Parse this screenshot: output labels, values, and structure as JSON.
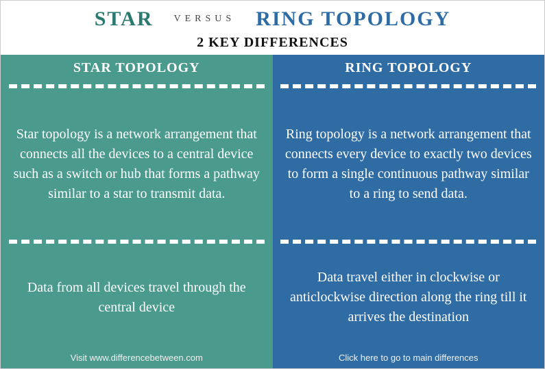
{
  "header": {
    "left": "STAR",
    "versus": "VERSUS",
    "right": "RING TOPOLOGY",
    "left_color": "#2b7a6f",
    "right_color": "#2f6ca3"
  },
  "subtitle": "2 KEY DIFFERENCES",
  "columns": {
    "left": {
      "title": "STAR TOPOLOGY",
      "bg_color": "#4a9a8e",
      "definition": "Star topology is a network arrangement that connects all the devices to a central device such as a switch or hub that forms a pathway similar to a star to transmit data.",
      "behavior": "Data from all devices travel through the central device",
      "footer": "Visit www.differencebetween.com"
    },
    "right": {
      "title": "RING TOPOLOGY",
      "bg_color": "#2f6ca3",
      "definition": "Ring topology is a network arrangement that connects every device to exactly two devices to form a single continuous pathway similar to a ring to send data.",
      "behavior": "Data travel either in clockwise or anticlockwise direction along the ring till it arrives the destination",
      "footer": "Click here to go to main differences"
    }
  }
}
